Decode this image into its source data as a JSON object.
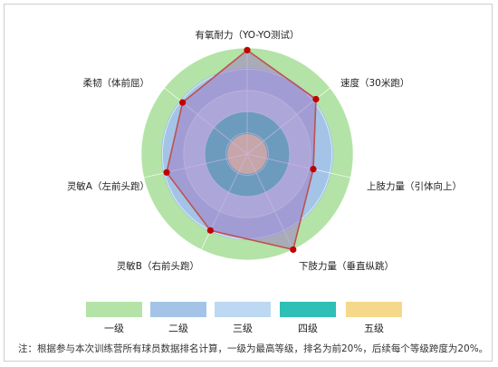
{
  "chart_data": {
    "type": "radar",
    "axes": [
      "有氧耐力（YO-YO测试）",
      "速度（30米跑）",
      "上肢力量（引体向上）",
      "下肢力量（垂直纵跳）",
      "灵敏B（右前头跑）",
      "灵敏A（左前头跑）",
      "柔韧（体前屈）"
    ],
    "levels": [
      {
        "label": "一级",
        "color": "#b3e3a6"
      },
      {
        "label": "二级",
        "color": "#a3c4e7"
      },
      {
        "label": "三级",
        "color": "#bdd8f2"
      },
      {
        "label": "四级",
        "color": "#2ebfb6"
      },
      {
        "label": "五级",
        "color": "#f5d88a"
      }
    ],
    "series": [
      {
        "values": [
          0.98,
          0.83,
          0.64,
          1.0,
          0.8,
          0.78,
          0.78
        ],
        "fill": "#a07ec4",
        "stroke": "#c0504d",
        "marker": "#c00000"
      }
    ]
  },
  "note": "注：根据参与本次训练营所有球员数据排名计算，一级为最高等级，排名为前20%，后续每个等级跨度为20%。"
}
